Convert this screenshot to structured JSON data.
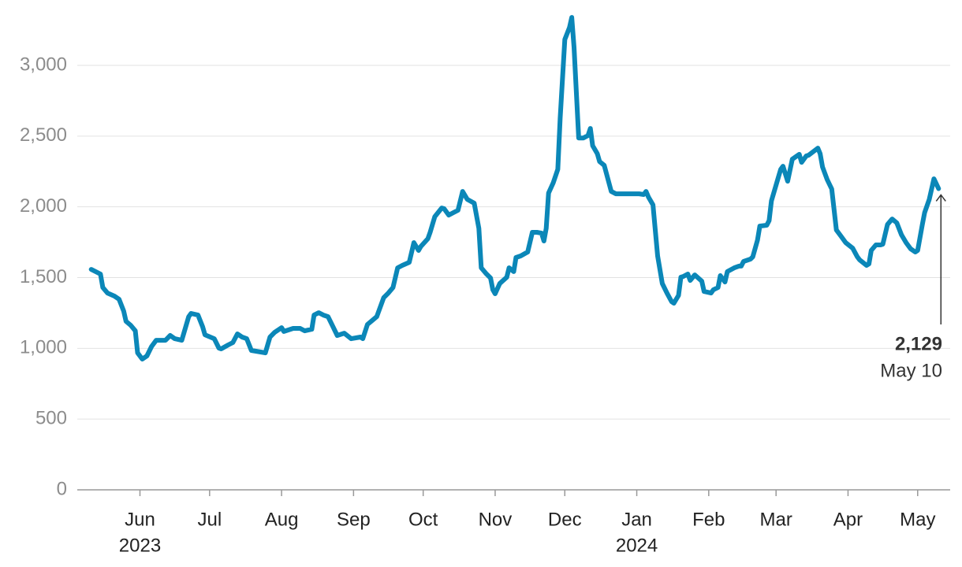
{
  "chart_data": {
    "type": "line",
    "x": [
      "2023-05-11",
      "2023-05-15",
      "2023-05-16",
      "2023-05-18",
      "2023-05-21",
      "2023-05-23",
      "2023-05-25",
      "2023-05-26",
      "2023-05-28",
      "2023-05-30",
      "2023-05-31",
      "2023-06-02",
      "2023-06-04",
      "2023-06-06",
      "2023-06-08",
      "2023-06-12",
      "2023-06-14",
      "2023-06-16",
      "2023-06-19",
      "2023-06-22",
      "2023-06-23",
      "2023-06-26",
      "2023-06-28",
      "2023-06-29",
      "2023-07-03",
      "2023-07-05",
      "2023-07-06",
      "2023-07-09",
      "2023-07-11",
      "2023-07-13",
      "2023-07-15",
      "2023-07-17",
      "2023-07-19",
      "2023-07-23",
      "2023-07-25",
      "2023-07-27",
      "2023-07-29",
      "2023-08-01",
      "2023-08-02",
      "2023-08-06",
      "2023-08-09",
      "2023-08-11",
      "2023-08-14",
      "2023-08-15",
      "2023-08-17",
      "2023-08-19",
      "2023-08-21",
      "2023-08-23",
      "2023-08-25",
      "2023-08-28",
      "2023-08-31",
      "2023-09-04",
      "2023-09-05",
      "2023-09-07",
      "2023-09-09",
      "2023-09-11",
      "2023-09-14",
      "2023-09-16",
      "2023-09-18",
      "2023-09-20",
      "2023-09-22",
      "2023-09-25",
      "2023-09-27",
      "2023-09-29",
      "2023-09-30",
      "2023-10-03",
      "2023-10-04",
      "2023-10-06",
      "2023-10-09",
      "2023-10-10",
      "2023-10-12",
      "2023-10-14",
      "2023-10-16",
      "2023-10-18",
      "2023-10-20",
      "2023-10-23",
      "2023-10-25",
      "2023-10-26",
      "2023-10-28",
      "2023-10-30",
      "2023-10-31",
      "2023-11-01",
      "2023-11-03",
      "2023-11-06",
      "2023-11-07",
      "2023-11-09",
      "2023-11-10",
      "2023-11-12",
      "2023-11-15",
      "2023-11-17",
      "2023-11-19",
      "2023-11-21",
      "2023-11-22",
      "2023-11-23",
      "2023-11-24",
      "2023-11-26",
      "2023-11-28",
      "2023-11-29",
      "2023-12-01",
      "2023-12-03",
      "2023-12-04",
      "2023-12-05",
      "2023-12-07",
      "2023-12-09",
      "2023-12-11",
      "2023-12-12",
      "2023-12-13",
      "2023-12-15",
      "2023-12-16",
      "2023-12-18",
      "2023-12-21",
      "2023-12-23",
      "2024-01-02",
      "2024-01-04",
      "2024-01-05",
      "2024-01-06",
      "2024-01-08",
      "2024-01-10",
      "2024-01-12",
      "2024-01-14",
      "2024-01-16",
      "2024-01-17",
      "2024-01-19",
      "2024-01-20",
      "2024-01-21",
      "2024-01-23",
      "2024-01-24",
      "2024-01-26",
      "2024-01-29",
      "2024-01-30",
      "2024-02-02",
      "2024-02-03",
      "2024-02-05",
      "2024-02-06",
      "2024-02-08",
      "2024-02-09",
      "2024-02-12",
      "2024-02-14",
      "2024-02-15",
      "2024-02-16",
      "2024-02-19",
      "2024-02-20",
      "2024-02-22",
      "2024-02-23",
      "2024-02-26",
      "2024-02-27",
      "2024-02-28",
      "2024-03-02",
      "2024-03-03",
      "2024-03-04",
      "2024-03-06",
      "2024-03-08",
      "2024-03-10",
      "2024-03-11",
      "2024-03-12",
      "2024-03-14",
      "2024-03-15",
      "2024-03-19",
      "2024-03-20",
      "2024-03-21",
      "2024-03-23",
      "2024-03-25",
      "2024-03-27",
      "2024-03-29",
      "2024-03-31",
      "2024-04-03",
      "2024-04-05",
      "2024-04-06",
      "2024-04-09",
      "2024-04-10",
      "2024-04-11",
      "2024-04-13",
      "2024-04-15",
      "2024-04-16",
      "2024-04-18",
      "2024-04-20",
      "2024-04-22",
      "2024-04-24",
      "2024-04-26",
      "2024-04-28",
      "2024-04-30",
      "2024-05-01",
      "2024-05-03",
      "2024-05-04",
      "2024-05-06",
      "2024-05-08",
      "2024-05-10"
    ],
    "series": [
      {
        "color": "#0b87b8",
        "values": [
          1558,
          1525,
          1430,
          1391,
          1369,
          1347,
          1263,
          1191,
          1163,
          1124,
          968,
          924,
          946,
          1013,
          1057,
          1057,
          1091,
          1068,
          1057,
          1224,
          1247,
          1235,
          1152,
          1096,
          1068,
          1002,
          996,
          1024,
          1041,
          1102,
          1080,
          1068,
          985,
          974,
          968,
          1080,
          1113,
          1146,
          1119,
          1141,
          1141,
          1124,
          1135,
          1235,
          1252,
          1235,
          1224,
          1157,
          1091,
          1107,
          1068,
          1080,
          1068,
          1169,
          1196,
          1224,
          1358,
          1391,
          1430,
          1569,
          1586,
          1608,
          1747,
          1692,
          1720,
          1775,
          1820,
          1931,
          1992,
          1987,
          1942,
          1959,
          1976,
          2109,
          2053,
          2026,
          1848,
          1569,
          1530,
          1497,
          1414,
          1386,
          1458,
          1503,
          1569,
          1542,
          1642,
          1653,
          1681,
          1820,
          1820,
          1814,
          1759,
          1848,
          2098,
          2170,
          2265,
          2627,
          3183,
          3267,
          3339,
          3127,
          2487,
          2487,
          2504,
          2554,
          2432,
          2376,
          2320,
          2293,
          2109,
          2092,
          2092,
          2087,
          2109,
          2070,
          2014,
          1653,
          1458,
          1391,
          1330,
          1319,
          1374,
          1503,
          1508,
          1525,
          1480,
          1519,
          1475,
          1402,
          1391,
          1414,
          1430,
          1514,
          1469,
          1542,
          1569,
          1581,
          1581,
          1614,
          1631,
          1647,
          1764,
          1864,
          1870,
          1903,
          2042,
          2209,
          2265,
          2287,
          2181,
          2337,
          2360,
          2371,
          2315,
          2360,
          2365,
          2415,
          2376,
          2282,
          2193,
          2126,
          1836,
          1792,
          1747,
          1708,
          1647,
          1625,
          1586,
          1597,
          1692,
          1731,
          1731,
          1736,
          1875,
          1914,
          1887,
          1803,
          1747,
          1703,
          1681,
          1692,
          1875,
          1959,
          2053,
          2198,
          2129
        ]
      }
    ],
    "xlim": [
      "2023-05-05",
      "2024-05-15"
    ],
    "xticks": [
      {
        "value": "2023-06-01",
        "label": "Jun"
      },
      {
        "value": "2023-07-01",
        "label": "Jul"
      },
      {
        "value": "2023-08-01",
        "label": "Aug"
      },
      {
        "value": "2023-09-01",
        "label": "Sep"
      },
      {
        "value": "2023-10-01",
        "label": "Oct"
      },
      {
        "value": "2023-11-01",
        "label": "Nov"
      },
      {
        "value": "2023-12-01",
        "label": "Dec"
      },
      {
        "value": "2024-01-01",
        "label": "Jan"
      },
      {
        "value": "2024-02-01",
        "label": "Feb"
      },
      {
        "value": "2024-03-01",
        "label": "Mar"
      },
      {
        "value": "2024-04-01",
        "label": "Apr"
      },
      {
        "value": "2024-05-01",
        "label": "May"
      }
    ],
    "x_year_labels": [
      {
        "value": "2023-06-01",
        "label": "2023"
      },
      {
        "value": "2024-01-01",
        "label": "2024"
      }
    ],
    "ylim": [
      0,
      3350
    ],
    "yticks": [
      0,
      {
        "value": 500,
        "label": "500"
      },
      {
        "value": 1000,
        "label": "1,000"
      },
      {
        "value": 1500,
        "label": "1,500"
      },
      {
        "value": 2000,
        "label": "2,000"
      },
      {
        "value": 2500,
        "label": "2,500"
      },
      {
        "value": 3000,
        "label": "3,000"
      }
    ],
    "grid": true,
    "annotation": {
      "x": "2024-05-10",
      "value": 2129,
      "label": "2,129",
      "date_label": "May 10"
    }
  }
}
